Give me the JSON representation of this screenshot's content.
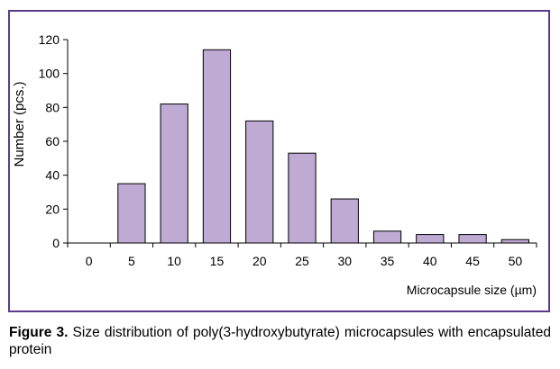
{
  "chart_data": {
    "type": "bar",
    "categories": [
      "0",
      "5",
      "10",
      "15",
      "20",
      "25",
      "30",
      "35",
      "40",
      "45",
      "50"
    ],
    "values": [
      0,
      35,
      82,
      114,
      72,
      53,
      26,
      7,
      5,
      5,
      2
    ],
    "xlabel": "Microcapsule size (µm)",
    "ylabel": "Number (pcs.)",
    "ylim": [
      0,
      120
    ],
    "yticks": [
      "0",
      "20",
      "40",
      "60",
      "80",
      "100",
      "120"
    ],
    "bar_color": "#bfaad4",
    "bar_edge_color": "#000000",
    "grid": false,
    "legend": "none"
  },
  "caption": {
    "label": "Figure 3.",
    "text": "Size distribution of poly(3-hydroxybutyrate) microcapsules with encapsulated protein"
  },
  "colors": {
    "frame_border": "#5b3a8c"
  }
}
